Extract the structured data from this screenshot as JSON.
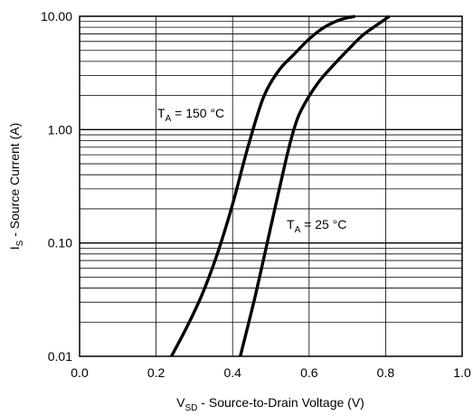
{
  "chart_data": {
    "type": "line",
    "title": "",
    "xlabel": {
      "main": "V",
      "sub": "SD",
      "rest": " - Source-to-Drain Voltage (V)"
    },
    "ylabel": {
      "main": "I",
      "sub": "S",
      "rest": " - Source Current (A)"
    },
    "xlim": [
      0.0,
      1.0
    ],
    "ylim": [
      0.01,
      10.0
    ],
    "yscale": "log",
    "grid": true,
    "x_ticks": [
      "0.0",
      "0.2",
      "0.4",
      "0.6",
      "0.8",
      "1.0"
    ],
    "y_ticks": [
      "0.01",
      "0.10",
      "1.00",
      "10.00"
    ],
    "series": [
      {
        "name": "TA = 150 °C",
        "label": {
          "main": "T",
          "sub": "A",
          "rest": " = 150 °C"
        },
        "x": [
          0.24,
          0.28,
          0.32,
          0.36,
          0.4,
          0.44,
          0.48,
          0.52,
          0.56,
          0.6,
          0.64,
          0.68,
          0.72
        ],
        "y": [
          0.01,
          0.018,
          0.035,
          0.08,
          0.22,
          0.7,
          1.9,
          3.3,
          4.6,
          6.3,
          8.0,
          9.3,
          10.0
        ]
      },
      {
        "name": "TA = 25 °C",
        "label": {
          "main": "T",
          "sub": "A",
          "rest": " = 25 °C"
        },
        "x": [
          0.42,
          0.46,
          0.5,
          0.54,
          0.56,
          0.58,
          0.62,
          0.66,
          0.7,
          0.74,
          0.78,
          0.81
        ],
        "y": [
          0.01,
          0.035,
          0.14,
          0.55,
          1.0,
          1.5,
          2.5,
          3.6,
          5.0,
          6.8,
          8.5,
          10.0
        ]
      }
    ]
  }
}
